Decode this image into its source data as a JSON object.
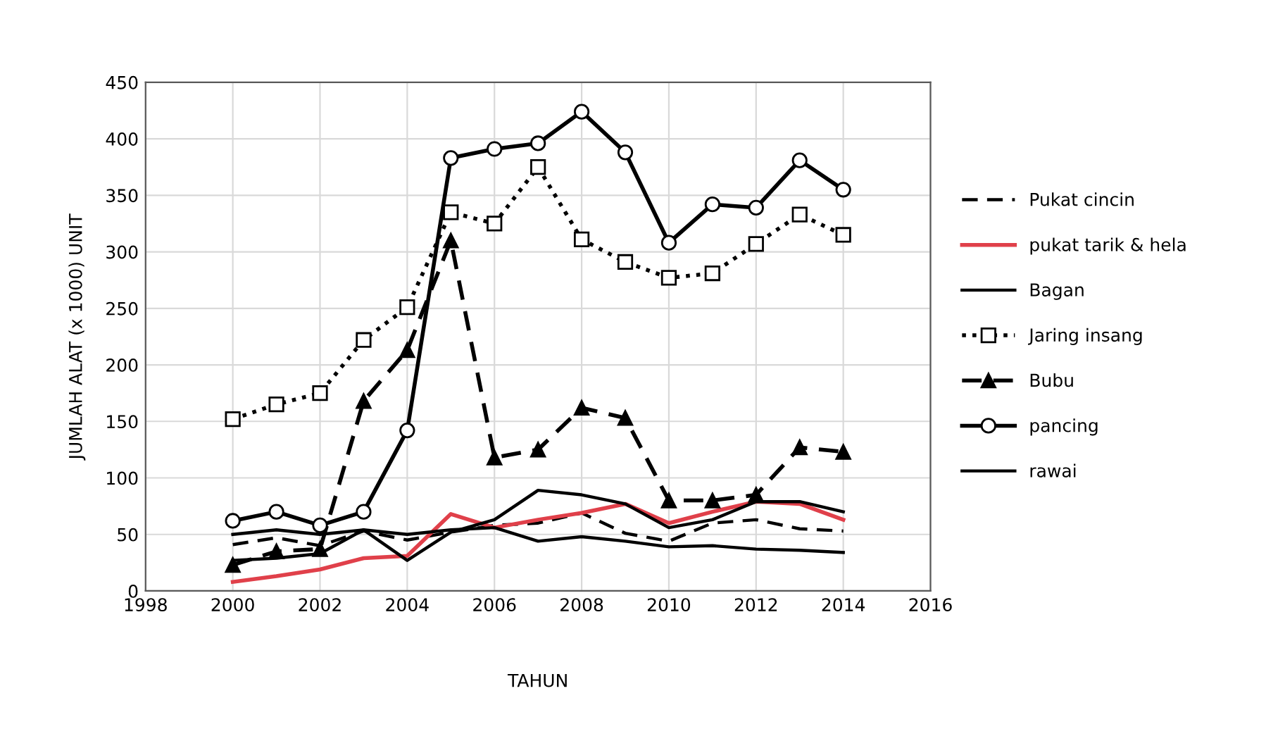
{
  "chart_data": {
    "type": "line",
    "xlabel": "TAHUN",
    "ylabel": "JUMLAH ALAT (x 1000) UNIT",
    "x": [
      2000,
      2001,
      2002,
      2003,
      2004,
      2005,
      2006,
      2007,
      2008,
      2009,
      2010,
      2011,
      2012,
      2013,
      2014
    ],
    "xlim": [
      1998,
      2016
    ],
    "xticks": [
      1998,
      2000,
      2002,
      2004,
      2006,
      2008,
      2010,
      2012,
      2014,
      2016
    ],
    "ylim": [
      0,
      450
    ],
    "yticks": [
      0,
      50,
      100,
      150,
      200,
      250,
      300,
      350,
      400,
      450
    ],
    "grid": true,
    "legend": "right",
    "series": [
      {
        "name": "Pukat cincin",
        "color": "#000000",
        "line_style": "dashed",
        "marker": "none",
        "values": [
          41,
          47,
          40,
          53,
          45,
          52,
          58,
          60,
          69,
          51,
          44,
          60,
          63,
          55,
          53
        ]
      },
      {
        "name": "pukat tarik & hela",
        "color": "#e0404a",
        "line_style": "solid",
        "marker": "none",
        "values": [
          8,
          13,
          19,
          29,
          31,
          68,
          56,
          63,
          69,
          77,
          60,
          70,
          79,
          77,
          63
        ]
      },
      {
        "name": "Bagan",
        "color": "#000000",
        "line_style": "solid",
        "marker": "none",
        "values": [
          50,
          54,
          50,
          54,
          27,
          52,
          63,
          89,
          85,
          77,
          56,
          63,
          79,
          79,
          70
        ]
      },
      {
        "name": "Jaring insang",
        "color": "#000000",
        "line_style": "dotted",
        "marker": "square",
        "values": [
          152,
          165,
          175,
          222,
          251,
          335,
          325,
          375,
          311,
          291,
          277,
          281,
          307,
          333,
          315
        ]
      },
      {
        "name": "Bubu",
        "color": "#000000",
        "line_style": "dashed",
        "marker": "triangle",
        "values": [
          23,
          35,
          37,
          168,
          213,
          310,
          118,
          125,
          162,
          153,
          80,
          80,
          85,
          127,
          123
        ]
      },
      {
        "name": "pancing",
        "color": "#000000",
        "line_style": "solid",
        "marker": "circle",
        "values": [
          62,
          70,
          58,
          70,
          142,
          383,
          391,
          396,
          424,
          388,
          308,
          342,
          339,
          381,
          355
        ]
      },
      {
        "name": "rawai",
        "color": "#000000",
        "line_style": "solid",
        "marker": "none",
        "values": [
          27,
          29,
          33,
          54,
          50,
          54,
          56,
          44,
          48,
          44,
          39,
          40,
          37,
          36,
          34
        ]
      }
    ]
  }
}
